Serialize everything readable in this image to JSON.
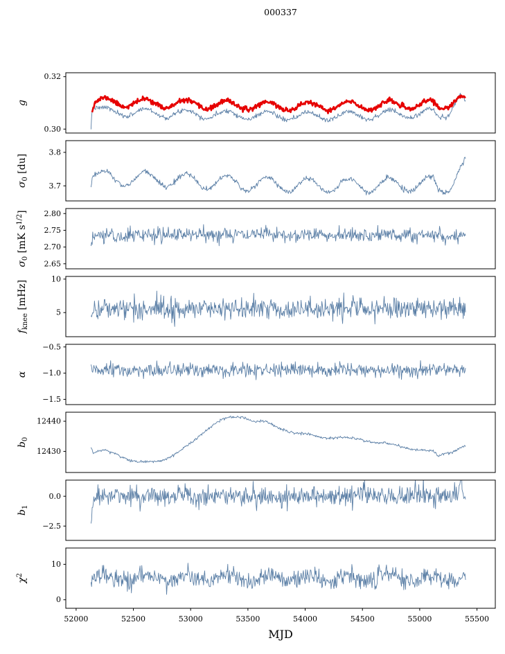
{
  "chart_data": {
    "type": "line",
    "title": "000337",
    "xlabel": "MJD",
    "xlim": [
      51910,
      55660
    ],
    "x_range": [
      52130,
      55400
    ],
    "xticks": [
      52000,
      52500,
      53000,
      53500,
      54000,
      54500,
      55000,
      55500
    ],
    "xtick_labels": [
      "52000",
      "52500",
      "53000",
      "53500",
      "54000",
      "54500",
      "55000",
      "55500"
    ],
    "colors": {
      "line": "#5b7fa6",
      "highlight": "#e60000",
      "axes": "#000000"
    },
    "legend": "none",
    "grid": false,
    "panels": [
      {
        "name": "g",
        "ylabel": [
          [
            "g",
            "i"
          ]
        ],
        "ylim": [
          0.2985,
          0.3215
        ],
        "yticks": [
          0.3,
          0.32
        ],
        "ytick_labels": [
          "0.30",
          "0.32"
        ],
        "series": [
          {
            "name": "g-fit",
            "color": "#5b7fa6",
            "lw": 0.9,
            "seed": 7,
            "noise": 0.00045,
            "osc": {
              "amp": 0.0016,
              "period": 355,
              "phase": 52161
            },
            "trend": [
              [
                52130,
                0.2995
              ],
              [
                52137,
                0.3075
              ],
              [
                52145,
                0.3088
              ],
              [
                52200,
                0.3068
              ],
              [
                52600,
                0.3062
              ],
              [
                53000,
                0.3058
              ],
              [
                53600,
                0.3052
              ],
              [
                54000,
                0.3048
              ],
              [
                54600,
                0.3054
              ],
              [
                55000,
                0.306
              ],
              [
                55120,
                0.3062
              ],
              [
                55160,
                0.3042
              ],
              [
                55250,
                0.3062
              ],
              [
                55320,
                0.312
              ],
              [
                55355,
                0.3132
              ],
              [
                55400,
                0.3098
              ]
            ]
          },
          {
            "name": "g-highlight",
            "color": "#e60000",
            "lw": 2.6,
            "seed": 11,
            "noise": 0.00045,
            "x_start": 52140,
            "osc": {
              "amp": 0.0016,
              "period": 355,
              "phase": 52161
            },
            "trend": [
              [
                52140,
                0.3075
              ],
              [
                52160,
                0.31
              ],
              [
                52250,
                0.3104
              ],
              [
                52600,
                0.3099
              ],
              [
                53000,
                0.3094
              ],
              [
                53600,
                0.3089
              ],
              [
                54000,
                0.3086
              ],
              [
                54600,
                0.309
              ],
              [
                55000,
                0.3094
              ],
              [
                55120,
                0.3095
              ],
              [
                55160,
                0.3076
              ],
              [
                55250,
                0.3096
              ],
              [
                55320,
                0.3122
              ],
              [
                55355,
                0.3128
              ],
              [
                55400,
                0.3112
              ]
            ]
          }
        ]
      },
      {
        "name": "sigma0-du",
        "ylabel": [
          [
            "σ",
            "i"
          ],
          [
            "0",
            "sub"
          ],
          [
            " [du]",
            ""
          ]
        ],
        "ylim": [
          3.655,
          3.835
        ],
        "yticks": [
          3.7,
          3.8
        ],
        "ytick_labels": [
          "3.7",
          "3.8"
        ],
        "series": [
          {
            "name": "sigma0-du",
            "color": "#5b7fa6",
            "lw": 0.9,
            "seed": 21,
            "noise": 0.004,
            "osc": {
              "amp": 0.021,
              "period": 355,
              "phase": 52161
            },
            "trend": [
              [
                52130,
                3.712
              ],
              [
                52145,
                3.735
              ],
              [
                52250,
                3.72
              ],
              [
                52600,
                3.722
              ],
              [
                53000,
                3.714
              ],
              [
                53600,
                3.706
              ],
              [
                54000,
                3.701
              ],
              [
                54600,
                3.701
              ],
              [
                55000,
                3.706
              ],
              [
                55120,
                3.709
              ],
              [
                55160,
                3.684
              ],
              [
                55250,
                3.7
              ],
              [
                55320,
                3.74
              ],
              [
                55370,
                3.762
              ],
              [
                55400,
                3.768
              ]
            ]
          }
        ]
      },
      {
        "name": "sigma0-mk",
        "ylabel": [
          [
            "σ",
            "i"
          ],
          [
            "0",
            "sub"
          ],
          [
            " [mK s",
            ""
          ],
          [
            "1/2",
            "sup"
          ],
          [
            "]",
            ""
          ]
        ],
        "ylim": [
          2.635,
          2.815
        ],
        "yticks": [
          2.65,
          2.7,
          2.75,
          2.8
        ],
        "ytick_labels": [
          "2.65",
          "2.70",
          "2.75",
          "2.80"
        ],
        "series": [
          {
            "name": "sigma0-mk",
            "color": "#5b7fa6",
            "lw": 0.9,
            "seed": 31,
            "noise": 0.0105,
            "osc": {
              "amp": 0.003,
              "period": 355,
              "phase": 52161
            },
            "trend": [
              [
                52130,
                2.7
              ],
              [
                52150,
                2.732
              ],
              [
                52400,
                2.735
              ],
              [
                53000,
                2.737
              ],
              [
                54000,
                2.738
              ],
              [
                55000,
                2.735
              ],
              [
                55400,
                2.732
              ]
            ]
          }
        ]
      },
      {
        "name": "fknee",
        "ylabel": [
          [
            "f",
            "i"
          ],
          [
            "knee",
            "sub"
          ],
          [
            " [mHz]",
            ""
          ]
        ],
        "ylim": [
          1.4,
          10.4
        ],
        "yticks": [
          5,
          10
        ],
        "ytick_labels": [
          "5",
          "10"
        ],
        "series": [
          {
            "name": "fknee",
            "color": "#5b7fa6",
            "lw": 0.9,
            "seed": 41,
            "noise": 0.8,
            "trend": [
              [
                52130,
                5.0
              ],
              [
                52160,
                5.6
              ],
              [
                55400,
                5.6
              ]
            ]
          }
        ]
      },
      {
        "name": "alpha",
        "ylabel": [
          [
            "α",
            "i"
          ]
        ],
        "ylim": [
          -1.6,
          -0.45
        ],
        "yticks": [
          -1.5,
          -1.0,
          -0.5
        ],
        "ytick_labels": [
          "−1.5",
          "−1.0",
          "−0.5"
        ],
        "series": [
          {
            "name": "alpha",
            "color": "#5b7fa6",
            "lw": 0.9,
            "seed": 51,
            "noise": 0.065,
            "trend": [
              [
                52130,
                -0.95
              ],
              [
                55400,
                -0.95
              ]
            ]
          }
        ]
      },
      {
        "name": "b0",
        "ylabel": [
          [
            "b",
            "i"
          ],
          [
            "0",
            "sub"
          ]
        ],
        "ylim": [
          12423,
          12443
        ],
        "yticks": [
          12430,
          12440
        ],
        "ytick_labels": [
          "12430",
          "12440"
        ],
        "series": [
          {
            "name": "b0",
            "color": "#5b7fa6",
            "lw": 0.9,
            "seed": 61,
            "noise": 0.22,
            "osc": {
              "amp": 0.25,
              "period": 355,
              "phase": 52161
            },
            "trend": [
              [
                52130,
                12431.5
              ],
              [
                52150,
                12429.6
              ],
              [
                52250,
                12430.2
              ],
              [
                52350,
                12429.2
              ],
              [
                52450,
                12427.5
              ],
              [
                52550,
                12426.3
              ],
              [
                52650,
                12426.4
              ],
              [
                52750,
                12427.2
              ],
              [
                52900,
                12429.8
              ],
              [
                53000,
                12432.5
              ],
              [
                53100,
                12436
              ],
              [
                53200,
                12439
              ],
              [
                53300,
                12440.8
              ],
              [
                53400,
                12441.3
              ],
              [
                53450,
                12441.5
              ],
              [
                53550,
                12440
              ],
              [
                53650,
                12439.8
              ],
              [
                53750,
                12438
              ],
              [
                53900,
                12436.3
              ],
              [
                54000,
                12435.6
              ],
              [
                54100,
                12435
              ],
              [
                54250,
                12434.6
              ],
              [
                54400,
                12434.3
              ],
              [
                54500,
                12433.8
              ],
              [
                54650,
                12432.8
              ],
              [
                54800,
                12431.9
              ],
              [
                54950,
                12430.8
              ],
              [
                55050,
                12430.2
              ],
              [
                55120,
                12429.8
              ],
              [
                55160,
                12428.5
              ],
              [
                55220,
                12429.3
              ],
              [
                55300,
                12430.2
              ],
              [
                55360,
                12431.3
              ],
              [
                55400,
                12431.6
              ]
            ]
          }
        ]
      },
      {
        "name": "b1",
        "ylabel": [
          [
            "b",
            "i"
          ],
          [
            "1",
            "sub"
          ]
        ],
        "ylim": [
          -3.7,
          1.35
        ],
        "yticks": [
          -2.5,
          0.0
        ],
        "ytick_labels": [
          "−2.5",
          "0.0"
        ],
        "series": [
          {
            "name": "b1",
            "color": "#5b7fa6",
            "lw": 0.9,
            "seed": 71,
            "noise": 0.42,
            "trend": [
              [
                52130,
                -2.45
              ],
              [
                52150,
                0.0
              ],
              [
                55340,
                0.05
              ],
              [
                55360,
                1.6
              ],
              [
                55370,
                0.05
              ],
              [
                55400,
                0.0
              ]
            ]
          }
        ]
      },
      {
        "name": "chi2",
        "ylabel": [
          [
            "χ",
            "i"
          ],
          [
            "2",
            "sup"
          ]
        ],
        "ylim": [
          -2.4,
          14.6
        ],
        "yticks": [
          0,
          10
        ],
        "ytick_labels": [
          "0",
          "10"
        ],
        "series": [
          {
            "name": "chi2",
            "color": "#5b7fa6",
            "lw": 0.9,
            "seed": 81,
            "noise": 1.25,
            "osc": {
              "amp": 1.05,
              "period": 355,
              "phase": 52161
            },
            "trend": [
              [
                52130,
                5.8
              ],
              [
                52200,
                6.2
              ],
              [
                55400,
                6.2
              ]
            ]
          }
        ]
      }
    ]
  }
}
